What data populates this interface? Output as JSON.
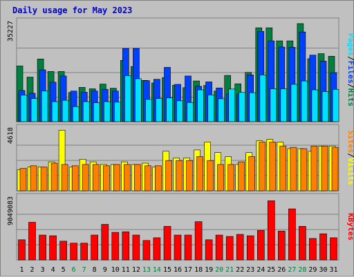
{
  "chart_data": {
    "type": "bar",
    "title": "Daily usage for May 2023",
    "days": [
      "1",
      "2",
      "3",
      "4",
      "5",
      "6",
      "7",
      "8",
      "9",
      "10",
      "11",
      "12",
      "13",
      "14",
      "15",
      "16",
      "17",
      "18",
      "19",
      "20",
      "21",
      "22",
      "23",
      "24",
      "25",
      "26",
      "27",
      "28",
      "29",
      "30",
      "31"
    ],
    "weekend_days": [
      "6",
      "7",
      "13",
      "14",
      "20",
      "21",
      "27",
      "28"
    ],
    "panels": [
      {
        "id": "hits",
        "ymax": 35227,
        "ymax_label": "35227",
        "ylabel": [
          "Pages",
          "Files",
          "Hits"
        ],
        "series": [
          {
            "name": "Hits",
            "color": "#008040",
            "values": [
              20000,
              16000,
              22500,
              18000,
              18000,
              10500,
              12300,
              11800,
              13500,
              12000,
              22000,
              19800,
              14800,
              13900,
              15800,
              13100,
              12200,
              14600,
              13000,
              11000,
              16600,
              13600,
              17700,
              33700,
              33700,
              29000,
              29000,
              35200,
              22600,
              24400,
              23500
            ]
          },
          {
            "name": "Files",
            "color": "#0040ff",
            "values": [
              11200,
              10200,
              18600,
              14200,
              16400,
              11000,
              10600,
              11000,
              11600,
              11000,
              26300,
              26300,
              14700,
              15200,
              19500,
              13400,
              16400,
              12700,
              14300,
              12100,
              10000,
              10100,
              16800,
              32400,
              29000,
              26800,
              26700,
              32200,
              23900,
              21700,
              17600
            ]
          },
          {
            "name": "Pages",
            "color": "#00e0ff",
            "values": [
              9500,
              8300,
              11000,
              7200,
              7700,
              5400,
              7200,
              6800,
              7200,
              7000,
              16500,
              15400,
              8000,
              8300,
              8500,
              7500,
              6900,
              11400,
              9600,
              8200,
              11700,
              10500,
              10400,
              16800,
              11800,
              11800,
              13400,
              14600,
              11400,
              10800,
              11600
            ]
          }
        ]
      },
      {
        "id": "visits",
        "ymax": 4618,
        "ymax_label": "4618",
        "ylabel": [
          "Sites",
          "Visits"
        ],
        "series": [
          {
            "name": "Visits",
            "color": "#ffff00",
            "values": [
              1600,
              1800,
              1800,
              2200,
              4600,
              1800,
              2400,
              2200,
              2000,
              2000,
              2200,
              2000,
              2100,
              1800,
              3000,
              2500,
              2500,
              3100,
              3700,
              2900,
              2600,
              2000,
              2900,
              3800,
              3900,
              3700,
              3200,
              3200,
              3000,
              3400,
              3400
            ]
          },
          {
            "name": "Sites",
            "color": "#ff8000",
            "values": [
              1700,
              1900,
              1800,
              2100,
              2000,
              1900,
              2000,
              2000,
              1900,
              2000,
              2000,
              2000,
              1900,
              1900,
              2300,
              2300,
              2300,
              2600,
              2300,
              2000,
              2000,
              2200,
              2600,
              3700,
              3700,
              3400,
              3300,
              3200,
              3400,
              3400,
              3300
            ]
          }
        ]
      },
      {
        "id": "kbytes",
        "ymax": 9049083,
        "ymax_label": "9049083",
        "ylabel": [
          "KBytes"
        ],
        "series": [
          {
            "name": "KBytes",
            "color": "#ff0000",
            "values": [
              3000000,
              5600000,
              3700000,
              3600000,
              2800000,
              2500000,
              2500000,
              3700000,
              5300000,
              4100000,
              4200000,
              3700000,
              2900000,
              3300000,
              5000000,
              3700000,
              3700000,
              5700000,
              3000000,
              3700000,
              3500000,
              3800000,
              3600000,
              4400000,
              8800000,
              4300000,
              7600000,
              5000000,
              3200000,
              3900000,
              3300000
            ]
          }
        ]
      }
    ]
  }
}
